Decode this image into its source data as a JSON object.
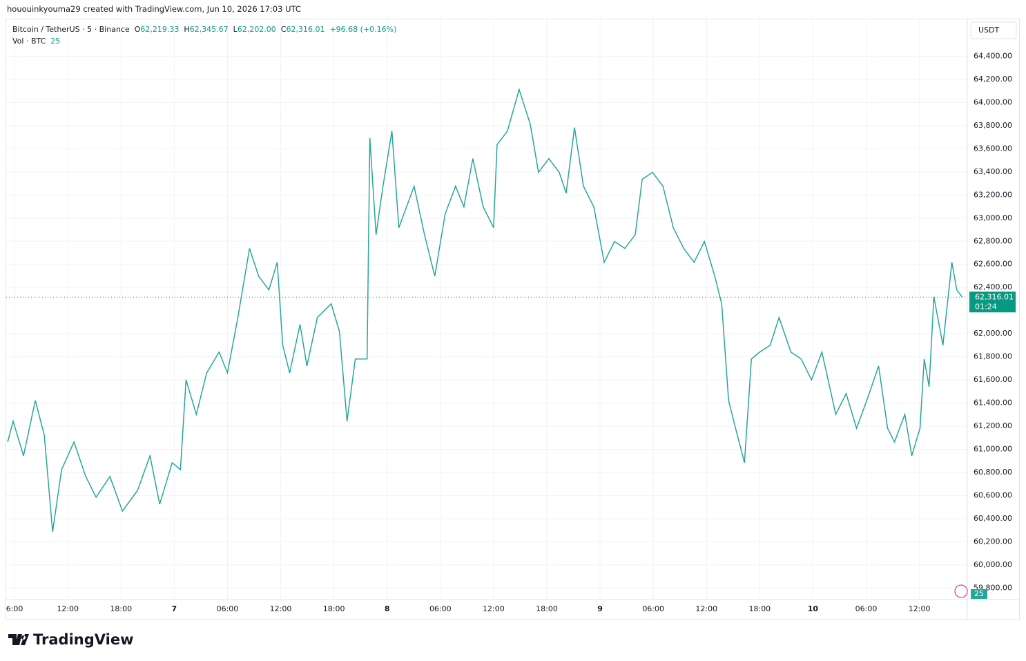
{
  "watermark": "hououinkyouma29 created with TradingView.com, Jun 10, 2026 17:03 UTC",
  "legend": {
    "symbol": "Bitcoin / TetherUS · 5 · Binance",
    "o_label": "O",
    "open": "62,219.33",
    "h_label": "H",
    "high": "62,345.67",
    "l_label": "L",
    "low": "62,202.00",
    "c_label": "C",
    "close": "62,316.01",
    "change": "+96.68 (+0.16%)",
    "volume_label": "Vol · BTC",
    "volume": "25"
  },
  "currency": "USDT",
  "countdown": "01:24",
  "volume_badge": "25",
  "brand": "TradingView",
  "chart_data": {
    "type": "line",
    "color": "#26a69a",
    "grid": true,
    "x": [
      5.22,
      5.84,
      7.01,
      8.34,
      9.35,
      10.29,
      11.3,
      12.7,
      14.03,
      15.19,
      16.75,
      18.16,
      19.87,
      21.27,
      22.36,
      23.77,
      24.7,
      25.33,
      26.49,
      27.66,
      29.06,
      30,
      31.17,
      32.49,
      33.51,
      34.67,
      35.61,
      36.23,
      37.01,
      38.18,
      38.96,
      40.13,
      41.69,
      42.62,
      43.48,
      44.41,
      45.74,
      46.05,
      46.75,
      47.53,
      48.54,
      49.32,
      51.04,
      52.21,
      53.37,
      54.54,
      55.71,
      56.65,
      57.66,
      58.83,
      60,
      60.39,
      61.56,
      62.88,
      64.13,
      65.06,
      66.23,
      67.4,
      68.18,
      69.12,
      70.13,
      71.3,
      72.47,
      73.63,
      74.8,
      75.97,
      76.75,
      77.92,
      79.09,
      80.26,
      81.43,
      82.6,
      83.76,
      84.93,
      85.71,
      86.49,
      87.27,
      88.28,
      89.06,
      90,
      91.17,
      92.18,
      93.51,
      94.67,
      95.84,
      97.01,
      98.57,
      99.74,
      100.91,
      102.07,
      103.4,
      104.41,
      105.19,
      106.36,
      107.14,
      108.07,
      108.54,
      109.09,
      109.63,
      110.65,
      111.66,
      112.21,
      112.83
    ],
    "values": [
      61063,
      61243,
      60944,
      61422,
      61123,
      60286,
      60824,
      61063,
      60764,
      60585,
      60764,
      60465,
      60645,
      60944,
      60525,
      60884,
      60824,
      61601,
      61302,
      61661,
      61841,
      61661,
      62140,
      62738,
      62498,
      62379,
      62618,
      61900,
      61661,
      62080,
      61721,
      62140,
      62259,
      62020,
      61243,
      61781,
      61781,
      63694,
      62857,
      63276,
      63754,
      62917,
      63276,
      62857,
      62498,
      63036,
      63276,
      63097,
      63515,
      63097,
      62917,
      63635,
      63754,
      64113,
      63814,
      63396,
      63515,
      63396,
      63216,
      63784,
      63276,
      63097,
      62618,
      62798,
      62738,
      62857,
      63336,
      63396,
      63276,
      62917,
      62738,
      62618,
      62798,
      62498,
      62259,
      61422,
      61183,
      60884,
      61781,
      61841,
      61900,
      62140,
      61841,
      61781,
      61601,
      61841,
      61302,
      61482,
      61183,
      61422,
      61721,
      61183,
      61063,
      61302,
      60944,
      61183,
      61781,
      61542,
      62319,
      61900,
      62618,
      62379,
      62316.01
    ],
    "last_price": {
      "value": 62316.01,
      "label": "62,316.01"
    },
    "xlim": [
      5.06,
      113.4
    ],
    "xticks": [
      {
        "value": 6,
        "label": "6:00"
      },
      {
        "value": 12,
        "label": "12:00"
      },
      {
        "value": 18,
        "label": "18:00"
      },
      {
        "value": 24,
        "label": "7"
      },
      {
        "value": 30,
        "label": "06:00"
      },
      {
        "value": 36,
        "label": "12:00"
      },
      {
        "value": 42,
        "label": "18:00"
      },
      {
        "value": 48,
        "label": "8"
      },
      {
        "value": 54,
        "label": "06:00"
      },
      {
        "value": 60,
        "label": "12:00"
      },
      {
        "value": 66,
        "label": "18:00"
      },
      {
        "value": 72,
        "label": "9"
      },
      {
        "value": 78,
        "label": "06:00"
      },
      {
        "value": 84,
        "label": "12:00"
      },
      {
        "value": 90,
        "label": "18:00"
      },
      {
        "value": 96,
        "label": "10"
      },
      {
        "value": 102,
        "label": "06:00"
      },
      {
        "value": 108,
        "label": "12:00"
      }
    ],
    "ylim": [
      59700,
      64720
    ],
    "yticks": [
      {
        "value": 59800,
        "label": "59,800.00"
      },
      {
        "value": 60000,
        "label": "60,000.00"
      },
      {
        "value": 60200,
        "label": "60,200.00"
      },
      {
        "value": 60400,
        "label": "60,400.00"
      },
      {
        "value": 60600,
        "label": "60,600.00"
      },
      {
        "value": 60800,
        "label": "60,800.00"
      },
      {
        "value": 61000,
        "label": "61,000.00"
      },
      {
        "value": 61200,
        "label": "61,200.00"
      },
      {
        "value": 61400,
        "label": "61,400.00"
      },
      {
        "value": 61600,
        "label": "61,600.00"
      },
      {
        "value": 61800,
        "label": "61,800.00"
      },
      {
        "value": 62000,
        "label": "62,000.00"
      },
      {
        "value": 62400,
        "label": "62,400.00"
      },
      {
        "value": 62600,
        "label": "62,600.00"
      },
      {
        "value": 62800,
        "label": "62,800.00"
      },
      {
        "value": 63000,
        "label": "63,000.00"
      },
      {
        "value": 63200,
        "label": "63,200.00"
      },
      {
        "value": 63400,
        "label": "63,400.00"
      },
      {
        "value": 63600,
        "label": "63,600.00"
      },
      {
        "value": 63800,
        "label": "63,800.00"
      },
      {
        "value": 64000,
        "label": "64,000.00"
      },
      {
        "value": 64200,
        "label": "64,200.00"
      },
      {
        "value": 64400,
        "label": "64,400.00"
      }
    ]
  }
}
